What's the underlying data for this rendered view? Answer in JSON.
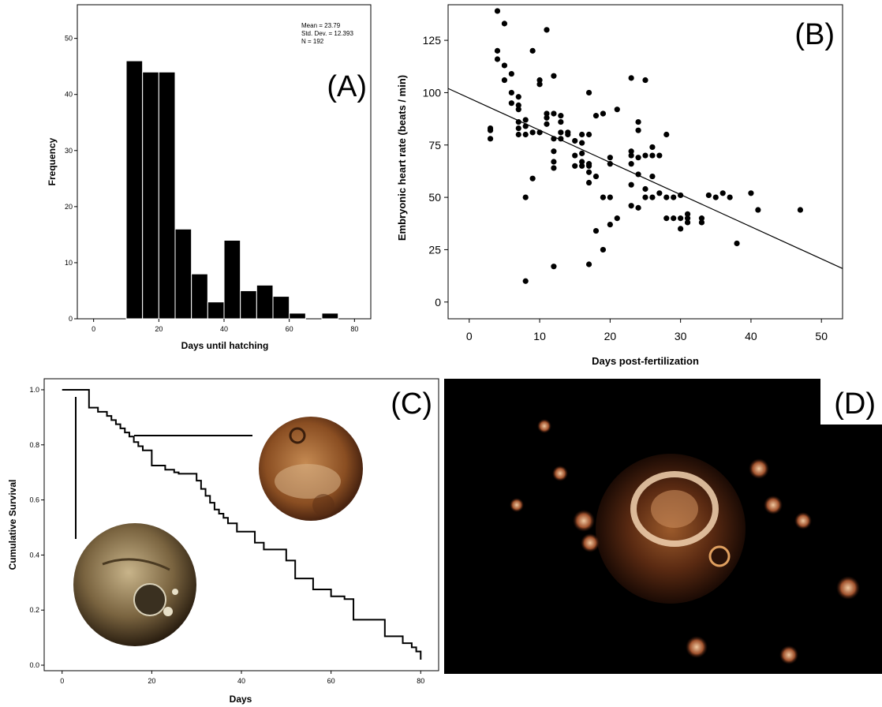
{
  "panels": {
    "A": {
      "tag": "(A)"
    },
    "B": {
      "tag": "(B)"
    },
    "C": {
      "tag": "(C)"
    },
    "D": {
      "tag": "(D)"
    }
  },
  "colors": {
    "ink": "#000000",
    "bar": "#000000",
    "photo_bg": "#000000",
    "embryo": "#8a4a22"
  },
  "chart_data": [
    {
      "panel": "A",
      "type": "bar",
      "xlabel": "Days until hatching",
      "ylabel": "Frequency",
      "bin_width": 5,
      "bin_starts": [
        10,
        15,
        20,
        25,
        30,
        35,
        40,
        45,
        50,
        55,
        60,
        70
      ],
      "values": [
        46,
        44,
        44,
        16,
        8,
        3,
        14,
        5,
        6,
        4,
        1,
        1
      ],
      "xlim": [
        -5,
        85
      ],
      "ylim": [
        0,
        56
      ],
      "xticks": [
        0,
        20,
        40,
        60,
        80
      ],
      "yticks": [
        0,
        10,
        20,
        30,
        40,
        50
      ],
      "stats": [
        "Mean = 23.79",
        "Std. Dev. = 12.393",
        "N = 192"
      ],
      "grid": false
    },
    {
      "panel": "B",
      "type": "scatter",
      "xlabel": "Days post-fertilization",
      "ylabel": "Embryonic heart rate (beats / min)",
      "xlim": [
        -3,
        53
      ],
      "ylim": [
        -8,
        142
      ],
      "xticks": [
        0,
        10,
        20,
        30,
        40,
        50
      ],
      "yticks": [
        0,
        25,
        50,
        75,
        100,
        125
      ],
      "fit_line": {
        "x": [
          -3,
          53
        ],
        "y": [
          102,
          16
        ]
      },
      "x": [
        3,
        3,
        3,
        4,
        4,
        4,
        5,
        5,
        5,
        6,
        6,
        6,
        7,
        7,
        7,
        7,
        7,
        7,
        8,
        8,
        8,
        8,
        8,
        9,
        9,
        9,
        10,
        10,
        10,
        11,
        11,
        11,
        11,
        12,
        12,
        12,
        12,
        12,
        12,
        12,
        13,
        13,
        13,
        13,
        14,
        14,
        15,
        15,
        15,
        16,
        16,
        16,
        16,
        16,
        17,
        17,
        17,
        17,
        17,
        17,
        17,
        18,
        18,
        18,
        19,
        19,
        19,
        20,
        20,
        20,
        20,
        21,
        21,
        23,
        23,
        23,
        23,
        23,
        23,
        24,
        24,
        24,
        24,
        24,
        25,
        25,
        25,
        25,
        26,
        26,
        26,
        26,
        27,
        27,
        28,
        28,
        28,
        29,
        29,
        30,
        30,
        30,
        31,
        31,
        31,
        33,
        33,
        34,
        35,
        36,
        37,
        38,
        40,
        41,
        47
      ],
      "y": [
        78,
        82,
        83,
        116,
        120,
        139,
        106,
        113,
        133,
        95,
        100,
        109,
        80,
        83,
        86,
        92,
        94,
        98,
        10,
        50,
        80,
        84,
        87,
        59,
        81,
        120,
        81,
        104,
        106,
        85,
        88,
        90,
        130,
        17,
        64,
        67,
        72,
        78,
        90,
        108,
        78,
        81,
        86,
        89,
        80,
        81,
        65,
        70,
        77,
        65,
        67,
        71,
        76,
        80,
        18,
        57,
        62,
        65,
        66,
        80,
        100,
        34,
        60,
        89,
        25,
        50,
        90,
        37,
        50,
        66,
        69,
        40,
        92,
        46,
        56,
        66,
        70,
        72,
        107,
        45,
        61,
        69,
        82,
        86,
        50,
        54,
        70,
        106,
        50,
        60,
        70,
        74,
        52,
        70,
        50,
        80,
        40,
        40,
        50,
        35,
        40,
        51,
        38,
        40,
        42,
        38,
        40,
        51,
        50,
        52,
        50,
        28,
        52,
        44,
        44
      ],
      "grid": false
    },
    {
      "panel": "C",
      "type": "line",
      "step": true,
      "xlabel": "Days",
      "ylabel": "Cumulative Survival",
      "xlim": [
        -4,
        84
      ],
      "ylim": [
        -0.02,
        1.04
      ],
      "xticks": [
        0,
        20,
        40,
        60,
        80
      ],
      "yticks": [
        "0.0",
        "0.2",
        "0.4",
        "0.6",
        "0.8",
        "1.0"
      ],
      "x": [
        0,
        6,
        8,
        10,
        11,
        12,
        13,
        14,
        15,
        16,
        17,
        18,
        20,
        23,
        25,
        26,
        30,
        31,
        32,
        33,
        34,
        35,
        36,
        37,
        39,
        43,
        45,
        50,
        52,
        56,
        60,
        63,
        65,
        72,
        76,
        78,
        79,
        80
      ],
      "y": [
        1.0,
        0.935,
        0.92,
        0.905,
        0.89,
        0.875,
        0.86,
        0.845,
        0.83,
        0.81,
        0.795,
        0.78,
        0.725,
        0.71,
        0.7,
        0.695,
        0.67,
        0.64,
        0.615,
        0.59,
        0.565,
        0.55,
        0.535,
        0.515,
        0.485,
        0.445,
        0.42,
        0.38,
        0.315,
        0.275,
        0.25,
        0.24,
        0.165,
        0.105,
        0.08,
        0.065,
        0.05,
        0.02
      ],
      "grid": false
    }
  ]
}
